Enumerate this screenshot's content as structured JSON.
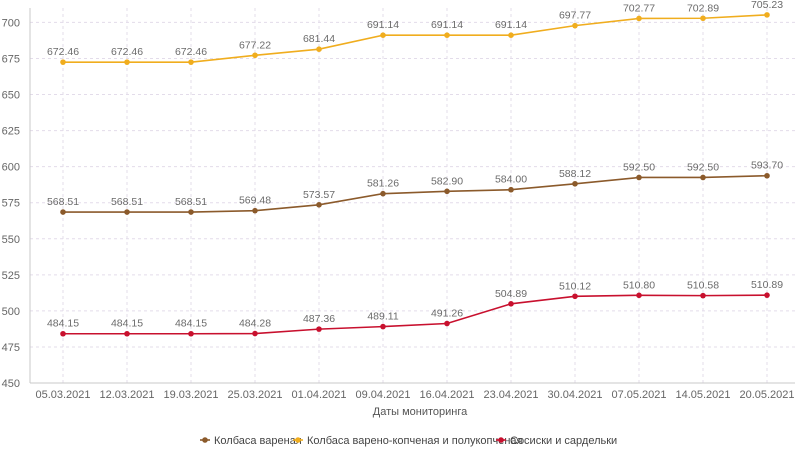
{
  "chart_data": {
    "type": "line",
    "title": "",
    "xlabel": "Даты мониторинга",
    "ylabel": "",
    "ylim": [
      450,
      710
    ],
    "y_ticks": [
      450,
      475,
      500,
      525,
      550,
      575,
      600,
      625,
      650,
      675,
      700
    ],
    "categories": [
      "05.03.2021",
      "12.03.2021",
      "19.03.2021",
      "25.03.2021",
      "01.04.2021",
      "09.04.2021",
      "16.04.2021",
      "23.04.2021",
      "30.04.2021",
      "07.05.2021",
      "14.05.2021",
      "20.05.2021"
    ],
    "grid": true,
    "legend_position": "bottom",
    "series": [
      {
        "name": "Колбаса вареная",
        "color": "#8b5a2b",
        "values": [
          568.51,
          568.51,
          568.51,
          569.48,
          573.57,
          581.26,
          582.9,
          584.0,
          588.12,
          592.5,
          592.5,
          593.7
        ],
        "labels": [
          "568.51",
          "568.51",
          "568.51",
          "569.48",
          "573.57",
          "581.26",
          "582.90",
          "584.00",
          "588.12",
          "592.50",
          "592.50",
          "593.70"
        ]
      },
      {
        "name": "Колбаса варено-копченая и полукопченая",
        "color": "#f0ad1e",
        "values": [
          672.46,
          672.46,
          672.46,
          677.22,
          681.44,
          691.14,
          691.14,
          691.14,
          697.77,
          702.77,
          702.89,
          705.23
        ],
        "labels": [
          "672.46",
          "672.46",
          "672.46",
          "677.22",
          "681.44",
          "691.14",
          "691.14",
          "691.14",
          "697.77",
          "702.77",
          "702.89",
          "705.23"
        ]
      },
      {
        "name": "Сосиски и сардельки",
        "color": "#c8102e",
        "values": [
          484.15,
          484.15,
          484.15,
          484.28,
          487.36,
          489.11,
          491.26,
          504.89,
          510.12,
          510.8,
          510.58,
          510.89
        ],
        "labels": [
          "484.15",
          "484.15",
          "484.15",
          "484.28",
          "487.36",
          "489.11",
          "491.26",
          "504.89",
          "510.12",
          "510.80",
          "510.58",
          "510.89"
        ]
      }
    ]
  }
}
